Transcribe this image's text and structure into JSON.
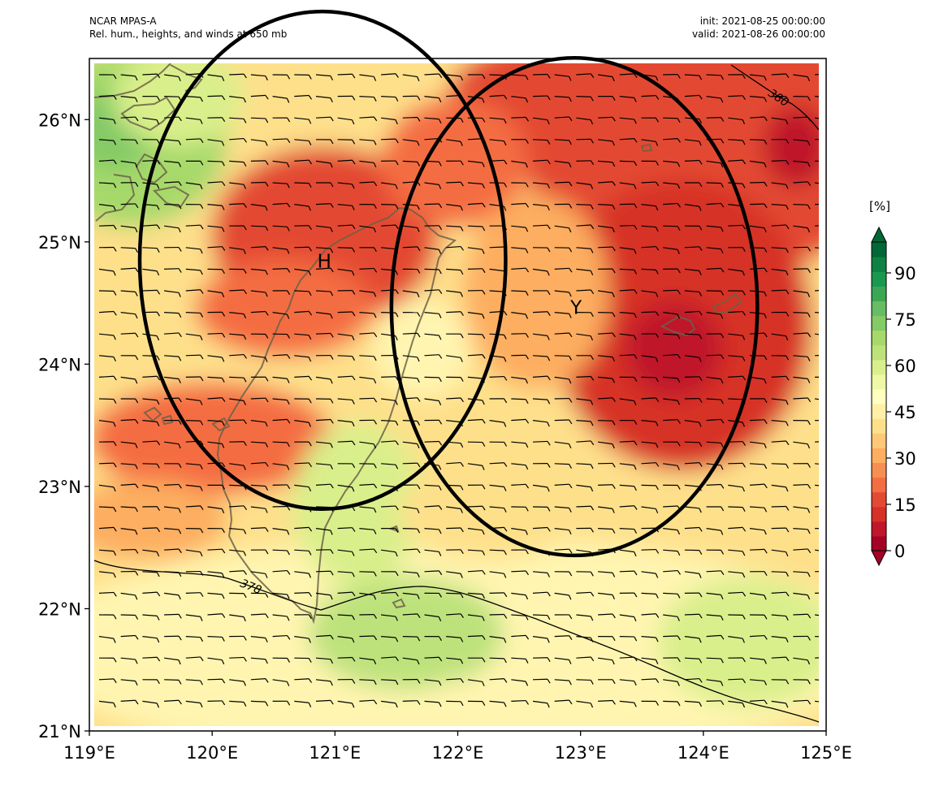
{
  "header": {
    "model": "NCAR MPAS-A",
    "description": "Rel. hum., heights, and winds at 650 mb",
    "init": "init: 2021-08-25 00:00:00",
    "valid": "valid: 2021-08-26 00:00:00"
  },
  "map": {
    "lon_range": [
      119,
      125
    ],
    "lat_range": [
      21,
      26.5
    ],
    "lon_ticks": [
      "119°E",
      "120°E",
      "121°E",
      "122°E",
      "123°E",
      "124°E",
      "125°E"
    ],
    "lat_ticks": [
      "21°N",
      "22°N",
      "23°N",
      "24°N",
      "25°N",
      "26°N"
    ],
    "contour_labels": [
      "378",
      "380"
    ],
    "region_markers": [
      {
        "label": "H",
        "lon": 120.9,
        "lat": 24.85,
        "radius_deg": 1.49
      },
      {
        "label": "Y",
        "lon": 122.95,
        "lat": 24.47,
        "radius_deg": 1.49
      }
    ]
  },
  "colorbar": {
    "unit": "[%]",
    "min": 0,
    "max": 100,
    "tick_labels": [
      "0",
      "15",
      "30",
      "45",
      "60",
      "75",
      "90"
    ],
    "colors": [
      "#a50026",
      "#c0162a",
      "#d73027",
      "#e34a33",
      "#f46d43",
      "#f68f52",
      "#fdae61",
      "#fdc978",
      "#fee08b",
      "#fff0a6",
      "#ffffbf",
      "#eef8a6",
      "#d9ef8b",
      "#bde27b",
      "#a6d96a",
      "#84ca66",
      "#66bd63",
      "#3ba755",
      "#1a9850",
      "#0e8243",
      "#006837"
    ]
  },
  "colors": {
    "wind_barb": "#000000",
    "coastline": "#6b6146",
    "circle": "#000000"
  }
}
